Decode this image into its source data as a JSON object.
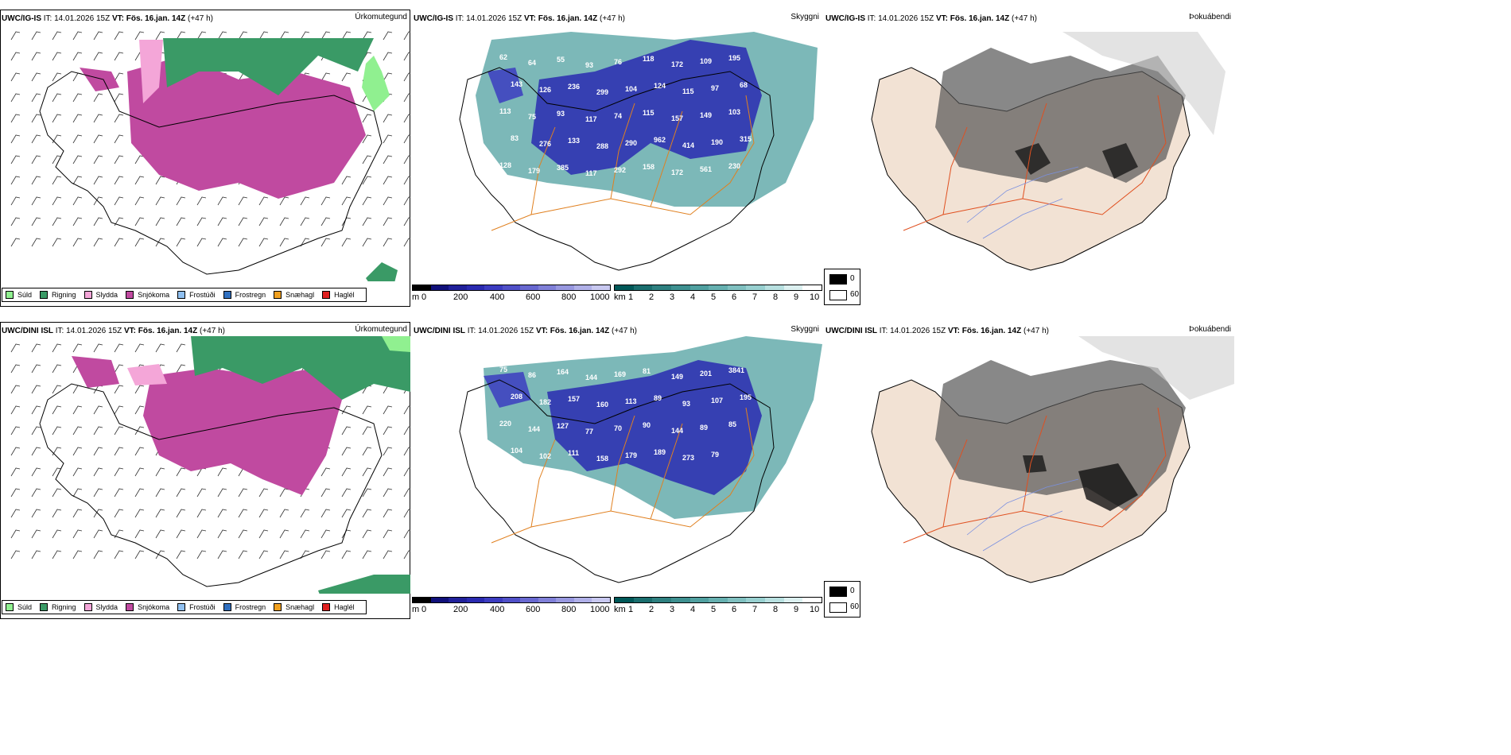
{
  "rows": [
    {
      "model": "UWC/IG-IS",
      "it_label": "IT:",
      "it_value": "14.01.2026 15Z",
      "vt_label": "VT:",
      "vt_value": "Fös. 16.jan. 14Z",
      "lead": "(+47 h)"
    },
    {
      "model": "UWC/DINI ISL",
      "it_label": "IT:",
      "it_value": "14.01.2026 15Z",
      "vt_label": "VT:",
      "vt_value": "Fös. 16.jan. 14Z",
      "lead": "(+47 h)"
    }
  ],
  "panels": {
    "precip": "Úrkomutegund",
    "cloud": "Skyggni",
    "fog": "Þokuábendi"
  },
  "precip_legend": [
    {
      "label": "Súld",
      "color": "#90f090"
    },
    {
      "label": "Rigning",
      "color": "#3a9a66"
    },
    {
      "label": "Slydda",
      "color": "#f4a6d8"
    },
    {
      "label": "Snjókoma",
      "color": "#c04aa0"
    },
    {
      "label": "Frostúði",
      "color": "#90c0f0"
    },
    {
      "label": "Frostregn",
      "color": "#3070c0"
    },
    {
      "label": "Snæhagl",
      "color": "#f0a020"
    },
    {
      "label": "Haglél",
      "color": "#e02020"
    }
  ],
  "cloud_base": {
    "unit": "m",
    "ticks": [
      "0",
      "200",
      "400",
      "600",
      "800",
      "1000"
    ],
    "colors": [
      "#000000",
      "#10107a",
      "#20209a",
      "#2a2ab0",
      "#3c3cc0",
      "#5050c8",
      "#6868d0",
      "#8080d8",
      "#9898e0",
      "#b0b0e8",
      "#c8c8f0"
    ]
  },
  "cloud_top": {
    "unit": "km",
    "ticks": [
      "1",
      "2",
      "3",
      "4",
      "5",
      "6",
      "7",
      "8",
      "9",
      "10"
    ],
    "colors": [
      "#005858",
      "#1a6e6e",
      "#2e8080",
      "#3e9090",
      "#50a0a0",
      "#66b0b0",
      "#80c0c0",
      "#98d0d0",
      "#b8e0e0",
      "#dcf0f0",
      "#ffffff"
    ]
  },
  "fog_legend": [
    "0",
    "60"
  ],
  "map_labels": {
    "row1": [
      "62",
      "64",
      "55",
      "93",
      "76",
      "118",
      "172",
      "109",
      "195",
      "143",
      "126",
      "236",
      "299",
      "104",
      "124",
      "115",
      "97",
      "68",
      "113",
      "75",
      "93",
      "117",
      "74",
      "115",
      "157",
      "149",
      "103",
      "83",
      "276",
      "133",
      "288",
      "290",
      "962",
      "414",
      "190",
      "315",
      "128",
      "179",
      "385",
      "117",
      "292",
      "158",
      "172",
      "561",
      "230"
    ],
    "row2": [
      "75",
      "86",
      "164",
      "144",
      "169",
      "81",
      "149",
      "201",
      "3841",
      "208",
      "182",
      "157",
      "160",
      "113",
      "89",
      "93",
      "107",
      "195",
      "220",
      "144",
      "127",
      "77",
      "70",
      "90",
      "144",
      "89",
      "85",
      "104",
      "102",
      "111",
      "158",
      "179",
      "189",
      "273",
      "79"
    ]
  }
}
